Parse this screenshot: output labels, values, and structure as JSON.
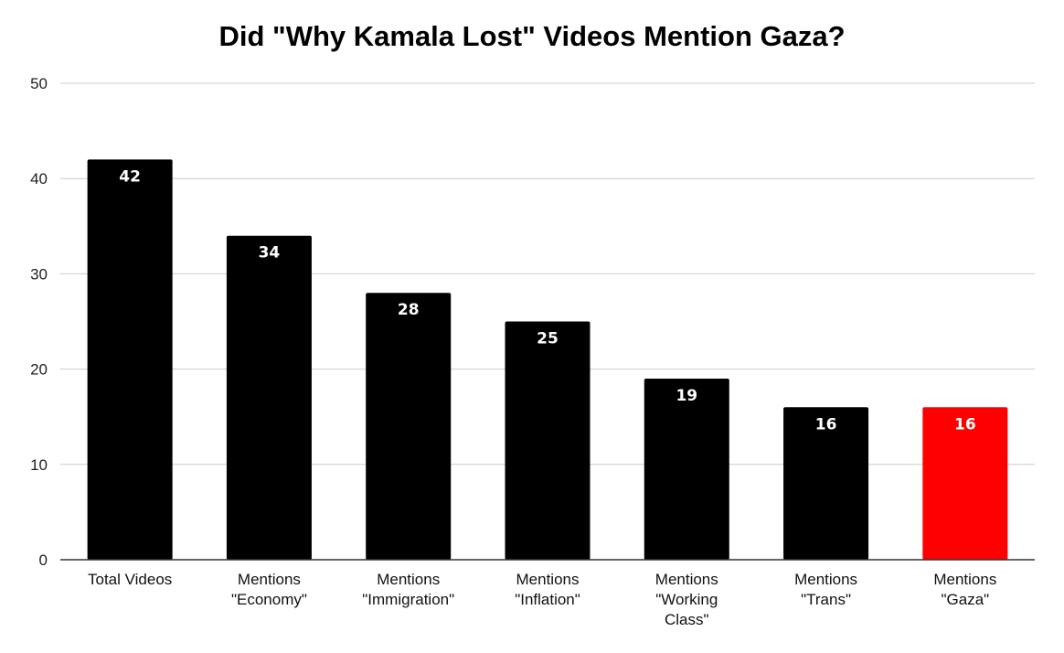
{
  "chart_data": {
    "type": "bar",
    "title": "Did \"Why Kamala Lost\" Videos Mention Gaza?",
    "xlabel": "",
    "ylabel": "",
    "categories": [
      [
        "Total Videos"
      ],
      [
        "Mentions",
        "\"Economy\""
      ],
      [
        "Mentions",
        "\"Immigration\""
      ],
      [
        "Mentions",
        "\"Inflation\""
      ],
      [
        "Mentions",
        "\"Working",
        "Class\""
      ],
      [
        "Mentions",
        "\"Trans\""
      ],
      [
        "Mentions",
        "\"Gaza\""
      ]
    ],
    "values": [
      42,
      34,
      28,
      25,
      19,
      16,
      16
    ],
    "data_labels": [
      "42",
      "34",
      "28",
      "25",
      "19",
      "16",
      "16"
    ],
    "bar_colors": [
      "#000000",
      "#000000",
      "#000000",
      "#000000",
      "#000000",
      "#000000",
      "#ff0000"
    ],
    "ylim": [
      0,
      50
    ],
    "yticks": [
      0,
      10,
      20,
      30,
      40,
      50
    ],
    "grid": true,
    "legend": "none"
  }
}
